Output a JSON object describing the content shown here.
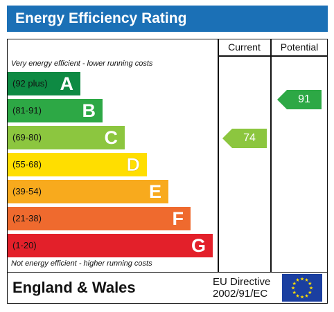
{
  "title": "Energy Efficiency Rating",
  "columns": {
    "current": "Current",
    "potential": "Potential"
  },
  "notes": {
    "top": "Very energy efficient - lower running costs",
    "bottom": "Not energy efficient - higher running costs"
  },
  "bands": [
    {
      "range": "(92 plus)",
      "letter": "A",
      "color": "#0e8a43"
    },
    {
      "range": "(81-91)",
      "letter": "B",
      "color": "#2da845"
    },
    {
      "range": "(69-80)",
      "letter": "C",
      "color": "#8cc63f"
    },
    {
      "range": "(55-68)",
      "letter": "D",
      "color": "#ffde00"
    },
    {
      "range": "(39-54)",
      "letter": "E",
      "color": "#f8aa1d"
    },
    {
      "range": "(21-38)",
      "letter": "F",
      "color": "#ef6a2e"
    },
    {
      "range": "(1-20)",
      "letter": "G",
      "color": "#e3202a"
    }
  ],
  "ratings": {
    "current": {
      "value": "74",
      "color": "#8cc63f"
    },
    "potential": {
      "value": "91",
      "color": "#2da845"
    }
  },
  "footer": {
    "country": "England & Wales",
    "directive_line1": "EU Directive",
    "directive_line2": "2002/91/EC"
  },
  "icons": {
    "flag": "eu-flag-icon"
  },
  "colors": {
    "header_bg": "#1b70b6",
    "flag_bg": "#1b3fa0",
    "flag_stars": "#ffde00"
  }
}
